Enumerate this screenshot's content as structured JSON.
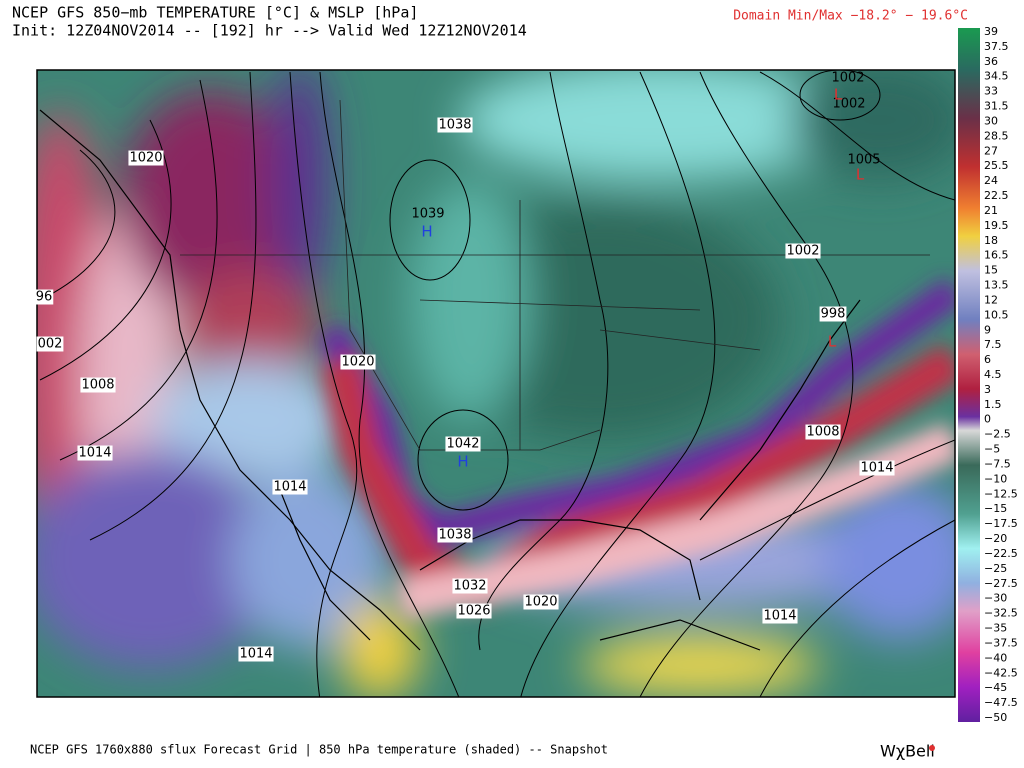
{
  "header": {
    "title": "NCEP GFS 850−mb TEMPERATURE [°C] & MSLP [hPa]",
    "subtitle": "Init: 12Z04NOV2014 -- [192] hr --> Valid Wed 12Z12NOV2014",
    "domain_minmax": "Domain Min/Max −18.2° −  19.6°C"
  },
  "colorbar": {
    "labels": [
      "39",
      "37.5",
      "36",
      "34.5",
      "33",
      "31.5",
      "30",
      "28.5",
      "27",
      "25.5",
      "24",
      "22.5",
      "21",
      "19.5",
      "18",
      "16.5",
      "15",
      "13.5",
      "12",
      "10.5",
      "9",
      "7.5",
      "6",
      "4.5",
      "3",
      "1.5",
      "0",
      "−2.5",
      "−5",
      "−7.5",
      "−10",
      "−12.5",
      "−15",
      "−17.5",
      "−20",
      "−22.5",
      "−25",
      "−27.5",
      "−30",
      "−32.5",
      "−35",
      "−37.5",
      "−40",
      "−42.5",
      "−45",
      "−47.5",
      "−50"
    ]
  },
  "map": {
    "isobar_labels": [
      "1038",
      "1039",
      "1020",
      "1002",
      "1002",
      "1005",
      "1002",
      "998",
      "96",
      "002",
      "1008",
      "1014",
      "1020",
      "1042",
      "1014",
      "1038",
      "1032",
      "1026",
      "1020",
      "1014",
      "1014",
      "1008",
      "1014"
    ],
    "pressure_centers": [
      "H",
      "H",
      "L",
      "L",
      "L"
    ]
  },
  "footer": {
    "text": "NCEP GFS 1760x880 sflux Forecast Grid | 850 hPa temperature (shaded) -- Snapshot",
    "logo": "WχBell"
  }
}
